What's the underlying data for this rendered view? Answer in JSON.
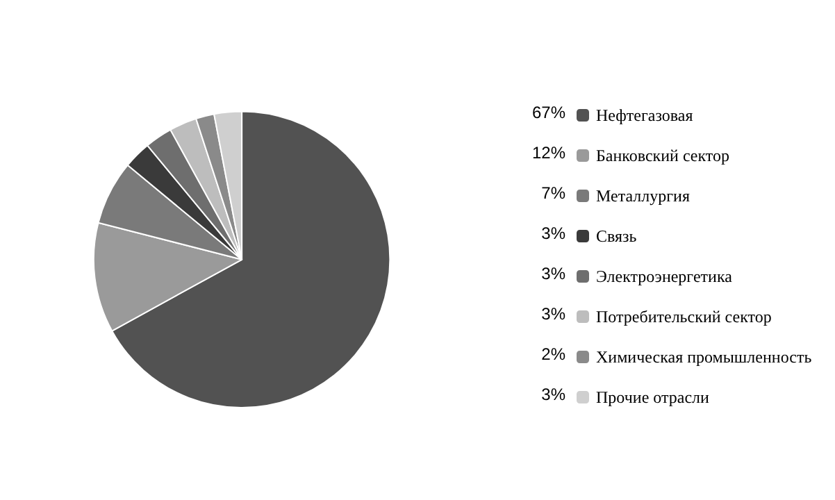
{
  "chart_data": {
    "type": "pie",
    "categories": [
      "Нефтегазовая",
      "Банковский сектор",
      "Металлургия",
      "Связь",
      "Электроэнергетика",
      "Потребительский сектор",
      "Химическая промышленность",
      "Прочие отрасли"
    ],
    "values": [
      67,
      12,
      7,
      3,
      3,
      3,
      2,
      3
    ],
    "colors": [
      "#525252",
      "#9a9a9a",
      "#7a7a7a",
      "#3a3a3a",
      "#6e6e6e",
      "#bdbdbd",
      "#8a8a8a",
      "#cfcfcf"
    ],
    "value_labels": [
      "67%",
      "12%",
      "7%",
      "3%",
      "3%",
      "3%",
      "2%",
      "3%"
    ],
    "legend": "right"
  }
}
